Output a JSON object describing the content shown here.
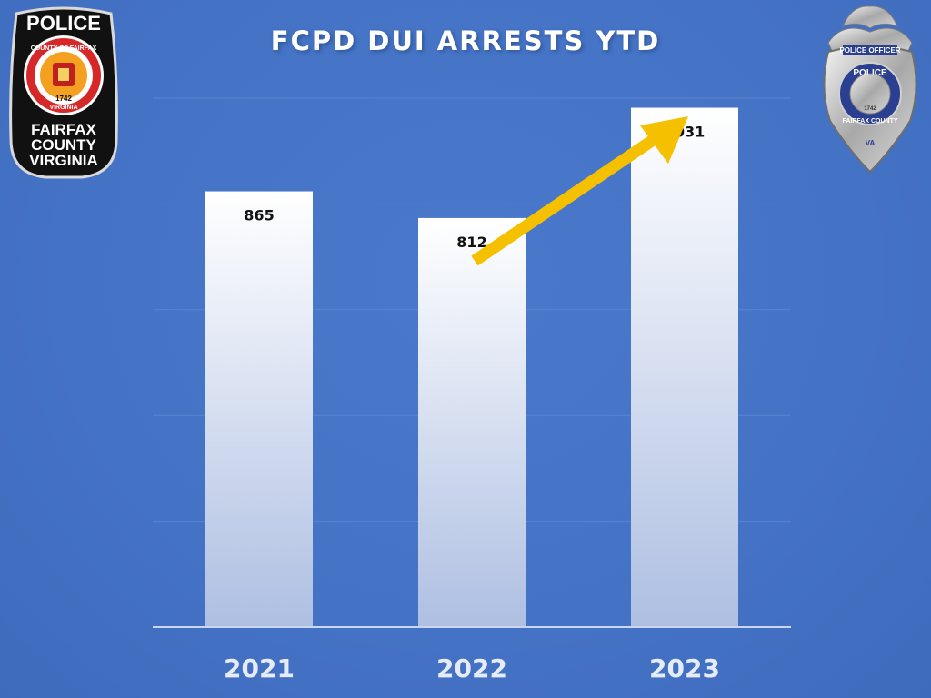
{
  "slide": {
    "title": "FCPD DUI ARRESTS YTD"
  },
  "left_logo": {
    "icon": "police-patch-icon",
    "top_text": "POLICE",
    "ring_text": "COUNTY OF FAIRFAX",
    "ring_bottom_text": "VIRGINIA",
    "year": "1742",
    "lines": [
      "FAIRFAX",
      "COUNTY",
      "VIRGINIA"
    ]
  },
  "right_logo": {
    "icon": "police-badge-icon",
    "top_text": "POLICE OFFICER",
    "center_text": "POLICE",
    "year": "1742",
    "bottom_text": "FAIRFAX COUNTY",
    "state": "VA"
  },
  "colors": {
    "background": "#4472c4",
    "bar_top": "#ffffff",
    "bar_bottom": "#aebfe2",
    "arrow": "#f5c000",
    "gridline": "#5a84cf",
    "axis": "#c9d6ee"
  },
  "chart_data": {
    "type": "bar",
    "title": "FCPD DUI ARRESTS YTD",
    "categories": [
      "2021",
      "2022",
      "2023"
    ],
    "values": [
      865,
      812,
      1031
    ],
    "data_labels": [
      "865",
      "812",
      "1031"
    ],
    "ylim": [
      0,
      1050
    ],
    "grid": true,
    "legend": "none",
    "annotation": "upward trend arrow from 2022 to 2023"
  }
}
